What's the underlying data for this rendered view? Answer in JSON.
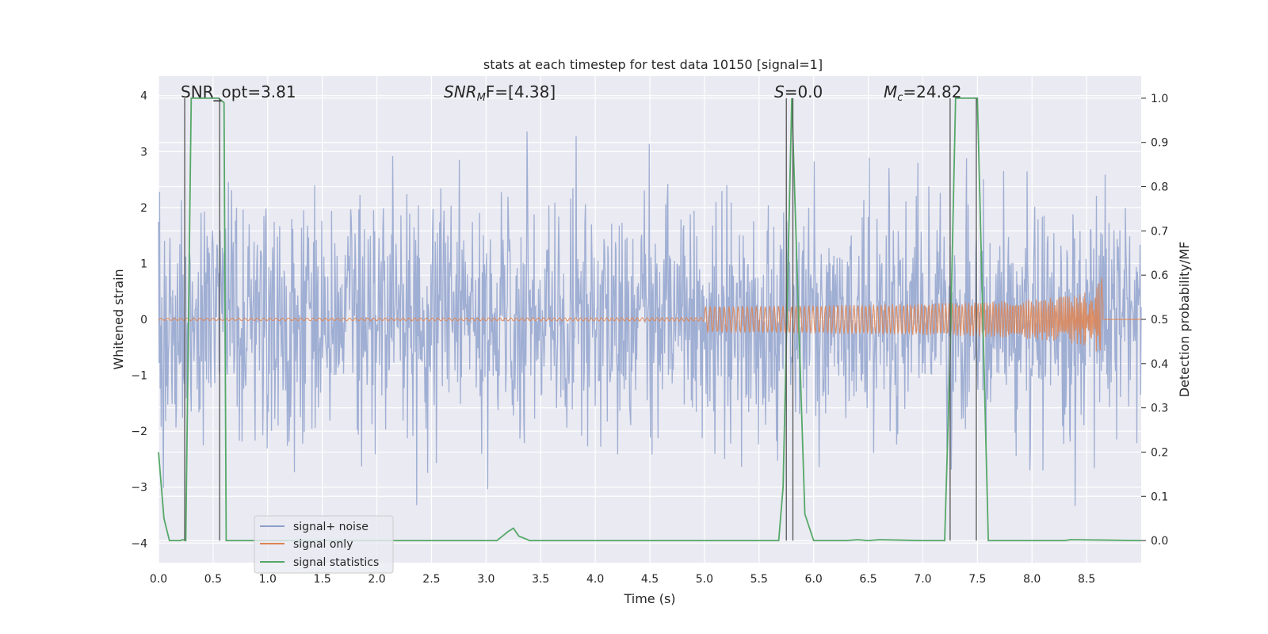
{
  "chart_data": {
    "type": "line",
    "title": "stats at each timestep for test data 10150 [signal=1]",
    "xlabel": "Time (s)",
    "ylabel_left": "Whitened strain",
    "ylabel_right": "Detection probability/MF",
    "xlim": [
      0.0,
      9.0
    ],
    "ylim_left": [
      -4.35,
      4.35
    ],
    "ylim_right": [
      -0.05,
      1.05
    ],
    "x_ticks": [
      "0.0",
      "0.5",
      "1.0",
      "1.5",
      "2.0",
      "2.5",
      "3.0",
      "3.5",
      "4.0",
      "4.5",
      "5.0",
      "5.5",
      "6.0",
      "6.5",
      "7.0",
      "7.5",
      "8.0",
      "8.5"
    ],
    "y_ticks_left": [
      "−4",
      "−3",
      "−2",
      "−1",
      "0",
      "1",
      "2",
      "3",
      "4"
    ],
    "y_ticks_right": [
      "0.0",
      "0.1",
      "0.2",
      "0.3",
      "0.4",
      "0.5",
      "0.6",
      "0.7",
      "0.8",
      "0.9",
      "1.0"
    ],
    "grid": true,
    "legend_position": "lower-left",
    "annotations": {
      "snr_opt": "SNR_opt=3.81",
      "snr_mf_prefix": "SNR",
      "snr_mf_sub": "M",
      "snr_mf_suffix": "F=[4.38]",
      "s_prefix": "S",
      "s_suffix": "=0.0",
      "mc_prefix": "M",
      "mc_sub": "c",
      "mc_suffix": "=24.82"
    },
    "series": [
      {
        "name": "signal+ noise",
        "color": "#8c9fca",
        "axis": "left",
        "description": "whitened noisy strain, amplitude roughly ±2 with spikes to ±4"
      },
      {
        "name": "signal only",
        "color": "#dd8452",
        "axis": "left",
        "chirp_end_time": 8.65,
        "chirp_peak_amplitude": 0.85
      },
      {
        "name": "signal statistics",
        "color": "#55a868",
        "axis": "right",
        "x": [
          0.0,
          0.05,
          0.1,
          0.2,
          0.22,
          0.25,
          0.3,
          0.55,
          0.6,
          0.62,
          0.7,
          1.0,
          2.0,
          3.0,
          3.1,
          3.2,
          3.25,
          3.3,
          3.4,
          4.0,
          5.0,
          5.5,
          5.68,
          5.72,
          5.8,
          5.85,
          5.92,
          6.0,
          6.3,
          6.4,
          6.5,
          6.6,
          7.0,
          7.2,
          7.25,
          7.3,
          7.5,
          7.6,
          7.8,
          8.0,
          8.3,
          8.35,
          9.0
        ],
        "y": [
          0.2,
          0.05,
          0.0,
          0.0,
          0.002,
          0.0,
          1.0,
          1.0,
          0.99,
          0.0,
          0.0,
          0.0,
          0.0,
          0.0,
          0.0,
          0.02,
          0.028,
          0.01,
          0.0,
          0.0,
          0.0,
          0.0,
          0.0,
          0.12,
          1.0,
          0.6,
          0.06,
          0.0,
          0.0,
          0.002,
          0.0,
          0.002,
          0.0,
          0.0,
          0.42,
          1.0,
          1.0,
          0.0,
          0.0,
          0.0,
          0.0,
          0.002,
          0.0
        ]
      }
    ],
    "vertical_lines_x": [
      0.24,
      0.56,
      5.75,
      5.81,
      7.25,
      7.49
    ]
  }
}
